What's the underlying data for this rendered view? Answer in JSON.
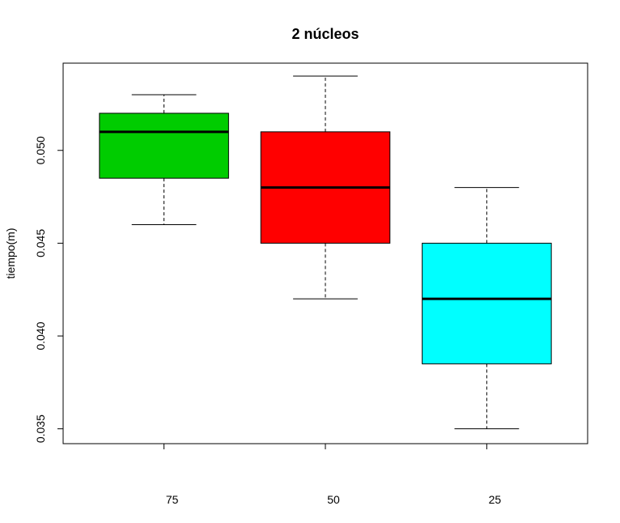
{
  "chart_data": {
    "type": "boxplot",
    "title": "2 núcleos",
    "xlabel": "",
    "ylabel": "tiempo(m)",
    "ylim": [
      0.0342,
      0.0547
    ],
    "grid": false,
    "legend": "none",
    "y_ticks": [
      0.035,
      0.04,
      0.045,
      0.05
    ],
    "y_tick_labels": [
      "0.035",
      "0.040",
      "0.045",
      "0.050"
    ],
    "categories": [
      "75",
      "50",
      "25"
    ],
    "boxes": [
      {
        "category": "75",
        "min": 0.046,
        "q1": 0.0485,
        "median": 0.051,
        "q3": 0.052,
        "max": 0.053,
        "color": "#00cc00"
      },
      {
        "category": "50",
        "min": 0.042,
        "q1": 0.045,
        "median": 0.048,
        "q3": 0.051,
        "max": 0.054,
        "color": "#ff0000"
      },
      {
        "category": "25",
        "min": 0.035,
        "q1": 0.0385,
        "median": 0.042,
        "q3": 0.045,
        "max": 0.048,
        "color": "#00ffff"
      }
    ]
  }
}
